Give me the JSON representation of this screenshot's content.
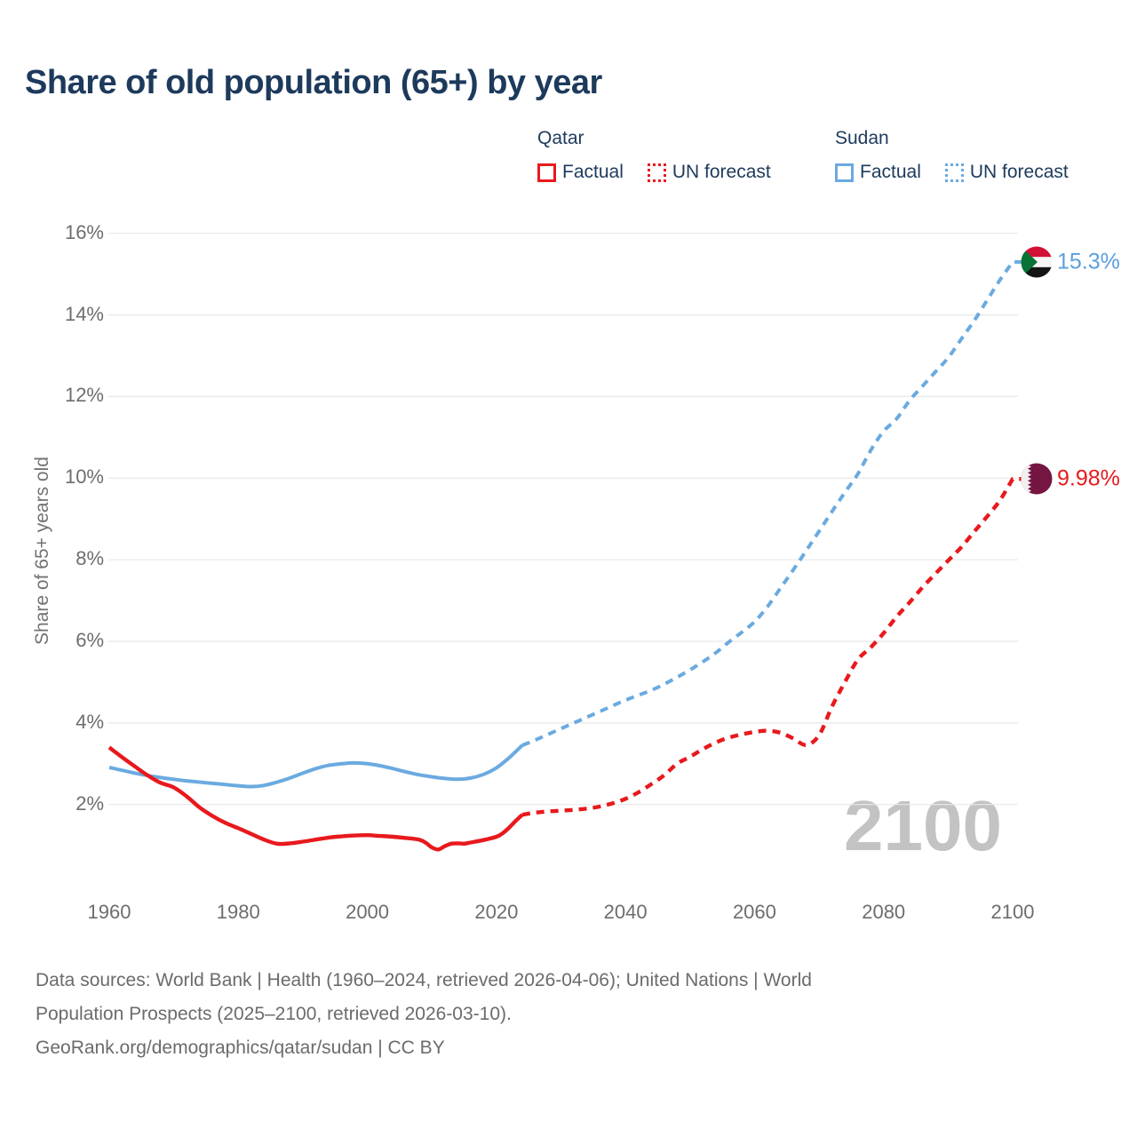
{
  "title": "Share of old population (65+) by year",
  "legend": {
    "qatar": {
      "title": "Qatar",
      "factual_label": "Factual",
      "forecast_label": "UN forecast"
    },
    "sudan": {
      "title": "Sudan",
      "factual_label": "Factual",
      "forecast_label": "UN forecast"
    }
  },
  "colors": {
    "qatar_line": "#e8191d",
    "sudan_line": "#6aaae0",
    "sudan_end_label": "#5a9fdd",
    "title_navy": "#1d3a5c",
    "axis_gray": "#6d6d6d",
    "gridline": "#e8e8e8",
    "watermark_gray": "#c3c3c3",
    "sudan_flag": {
      "red": "#d21034",
      "white": "#f5f5f5",
      "black": "#141414",
      "green": "#097237"
    },
    "qatar_flag": {
      "maroon": "#751542",
      "white": "#f2f0ee"
    }
  },
  "watermark": "2100",
  "end_labels": {
    "sudan": "15.3%",
    "qatar": "9.98%"
  },
  "footer": {
    "line1": "Data sources: World Bank | Health (1960–2024, retrieved 2026-04-06); United Nations | World",
    "line2": "Population Prospects (2025–2100, retrieved 2026-03-10).",
    "line3": "GeoRank.org/demographics/qatar/sudan | CC BY"
  },
  "chart_data": {
    "type": "line",
    "title": "Share of old population (65+) by year",
    "xlabel": "",
    "ylabel": "Share of 65+ years old",
    "x_ticks": [
      1960,
      1980,
      2000,
      2020,
      2040,
      2060,
      2080,
      2100
    ],
    "y_ticks_pct": [
      2,
      4,
      6,
      8,
      10,
      12,
      14,
      16
    ],
    "xlim": [
      1960,
      2100
    ],
    "ylim": [
      0,
      16.5
    ],
    "grid": "horizontal-only",
    "legend_position": "top-right",
    "series": [
      {
        "name": "Qatar Factual",
        "color": "#e8191d",
        "style": "solid",
        "points": [
          [
            1960,
            3.4
          ],
          [
            1962,
            3.16
          ],
          [
            1964,
            2.93
          ],
          [
            1966,
            2.71
          ],
          [
            1968,
            2.53
          ],
          [
            1970,
            2.42
          ],
          [
            1972,
            2.2
          ],
          [
            1974,
            1.93
          ],
          [
            1976,
            1.72
          ],
          [
            1978,
            1.55
          ],
          [
            1980,
            1.42
          ],
          [
            1982,
            1.28
          ],
          [
            1984,
            1.14
          ],
          [
            1986,
            1.04
          ],
          [
            1988,
            1.05
          ],
          [
            1990,
            1.09
          ],
          [
            1992,
            1.14
          ],
          [
            1994,
            1.19
          ],
          [
            1996,
            1.22
          ],
          [
            1998,
            1.24
          ],
          [
            2000,
            1.25
          ],
          [
            2002,
            1.23
          ],
          [
            2004,
            1.21
          ],
          [
            2006,
            1.18
          ],
          [
            2008,
            1.14
          ],
          [
            2009,
            1.07
          ],
          [
            2010,
            0.95
          ],
          [
            2011,
            0.9
          ],
          [
            2012,
            0.98
          ],
          [
            2013,
            1.04
          ],
          [
            2014,
            1.05
          ],
          [
            2015,
            1.04
          ],
          [
            2016,
            1.07
          ],
          [
            2018,
            1.13
          ],
          [
            2020,
            1.21
          ],
          [
            2021,
            1.3
          ],
          [
            2022,
            1.44
          ],
          [
            2023,
            1.6
          ],
          [
            2024,
            1.75
          ]
        ]
      },
      {
        "name": "Qatar UN forecast",
        "color": "#e8191d",
        "style": "dashed",
        "end_label": "9.98%",
        "points": [
          [
            2024,
            1.75
          ],
          [
            2026,
            1.8
          ],
          [
            2028,
            1.83
          ],
          [
            2030,
            1.85
          ],
          [
            2032,
            1.87
          ],
          [
            2034,
            1.9
          ],
          [
            2036,
            1.95
          ],
          [
            2038,
            2.03
          ],
          [
            2040,
            2.14
          ],
          [
            2042,
            2.3
          ],
          [
            2044,
            2.5
          ],
          [
            2046,
            2.72
          ],
          [
            2048,
            3.0
          ],
          [
            2050,
            3.17
          ],
          [
            2052,
            3.36
          ],
          [
            2054,
            3.52
          ],
          [
            2056,
            3.64
          ],
          [
            2058,
            3.72
          ],
          [
            2060,
            3.78
          ],
          [
            2062,
            3.81
          ],
          [
            2064,
            3.76
          ],
          [
            2066,
            3.62
          ],
          [
            2068,
            3.46
          ],
          [
            2070,
            3.7
          ],
          [
            2072,
            4.4
          ],
          [
            2074,
            5.0
          ],
          [
            2076,
            5.55
          ],
          [
            2078,
            5.85
          ],
          [
            2080,
            6.2
          ],
          [
            2082,
            6.6
          ],
          [
            2084,
            6.95
          ],
          [
            2086,
            7.32
          ],
          [
            2088,
            7.65
          ],
          [
            2090,
            7.98
          ],
          [
            2092,
            8.3
          ],
          [
            2094,
            8.68
          ],
          [
            2096,
            9.05
          ],
          [
            2098,
            9.45
          ],
          [
            2100,
            9.98
          ]
        ]
      },
      {
        "name": "Sudan Factual",
        "color": "#6aaae0",
        "style": "solid",
        "points": [
          [
            1960,
            2.91
          ],
          [
            1962,
            2.84
          ],
          [
            1964,
            2.77
          ],
          [
            1966,
            2.71
          ],
          [
            1968,
            2.66
          ],
          [
            1970,
            2.62
          ],
          [
            1972,
            2.58
          ],
          [
            1974,
            2.55
          ],
          [
            1976,
            2.52
          ],
          [
            1978,
            2.49
          ],
          [
            1980,
            2.46
          ],
          [
            1982,
            2.44
          ],
          [
            1984,
            2.47
          ],
          [
            1986,
            2.55
          ],
          [
            1988,
            2.65
          ],
          [
            1990,
            2.77
          ],
          [
            1992,
            2.88
          ],
          [
            1994,
            2.96
          ],
          [
            1996,
            3.0
          ],
          [
            1998,
            3.02
          ],
          [
            2000,
            3.0
          ],
          [
            2002,
            2.95
          ],
          [
            2004,
            2.88
          ],
          [
            2006,
            2.8
          ],
          [
            2008,
            2.73
          ],
          [
            2010,
            2.68
          ],
          [
            2012,
            2.64
          ],
          [
            2014,
            2.62
          ],
          [
            2016,
            2.65
          ],
          [
            2018,
            2.74
          ],
          [
            2020,
            2.9
          ],
          [
            2022,
            3.15
          ],
          [
            2024,
            3.45
          ]
        ]
      },
      {
        "name": "Sudan UN forecast",
        "color": "#6aaae0",
        "style": "dashed",
        "end_label": "15.3%",
        "points": [
          [
            2024,
            3.45
          ],
          [
            2026,
            3.58
          ],
          [
            2028,
            3.72
          ],
          [
            2030,
            3.86
          ],
          [
            2032,
            4.0
          ],
          [
            2034,
            4.14
          ],
          [
            2036,
            4.28
          ],
          [
            2038,
            4.42
          ],
          [
            2040,
            4.56
          ],
          [
            2042,
            4.68
          ],
          [
            2044,
            4.8
          ],
          [
            2046,
            4.95
          ],
          [
            2048,
            5.12
          ],
          [
            2050,
            5.3
          ],
          [
            2052,
            5.5
          ],
          [
            2054,
            5.72
          ],
          [
            2056,
            5.98
          ],
          [
            2058,
            6.22
          ],
          [
            2060,
            6.48
          ],
          [
            2062,
            6.85
          ],
          [
            2064,
            7.3
          ],
          [
            2066,
            7.75
          ],
          [
            2068,
            8.22
          ],
          [
            2070,
            8.7
          ],
          [
            2072,
            9.18
          ],
          [
            2074,
            9.65
          ],
          [
            2076,
            10.1
          ],
          [
            2078,
            10.68
          ],
          [
            2080,
            11.15
          ],
          [
            2082,
            11.45
          ],
          [
            2084,
            11.9
          ],
          [
            2086,
            12.25
          ],
          [
            2088,
            12.6
          ],
          [
            2090,
            12.95
          ],
          [
            2092,
            13.4
          ],
          [
            2094,
            13.85
          ],
          [
            2096,
            14.35
          ],
          [
            2098,
            14.85
          ],
          [
            2100,
            15.3
          ]
        ]
      }
    ]
  }
}
